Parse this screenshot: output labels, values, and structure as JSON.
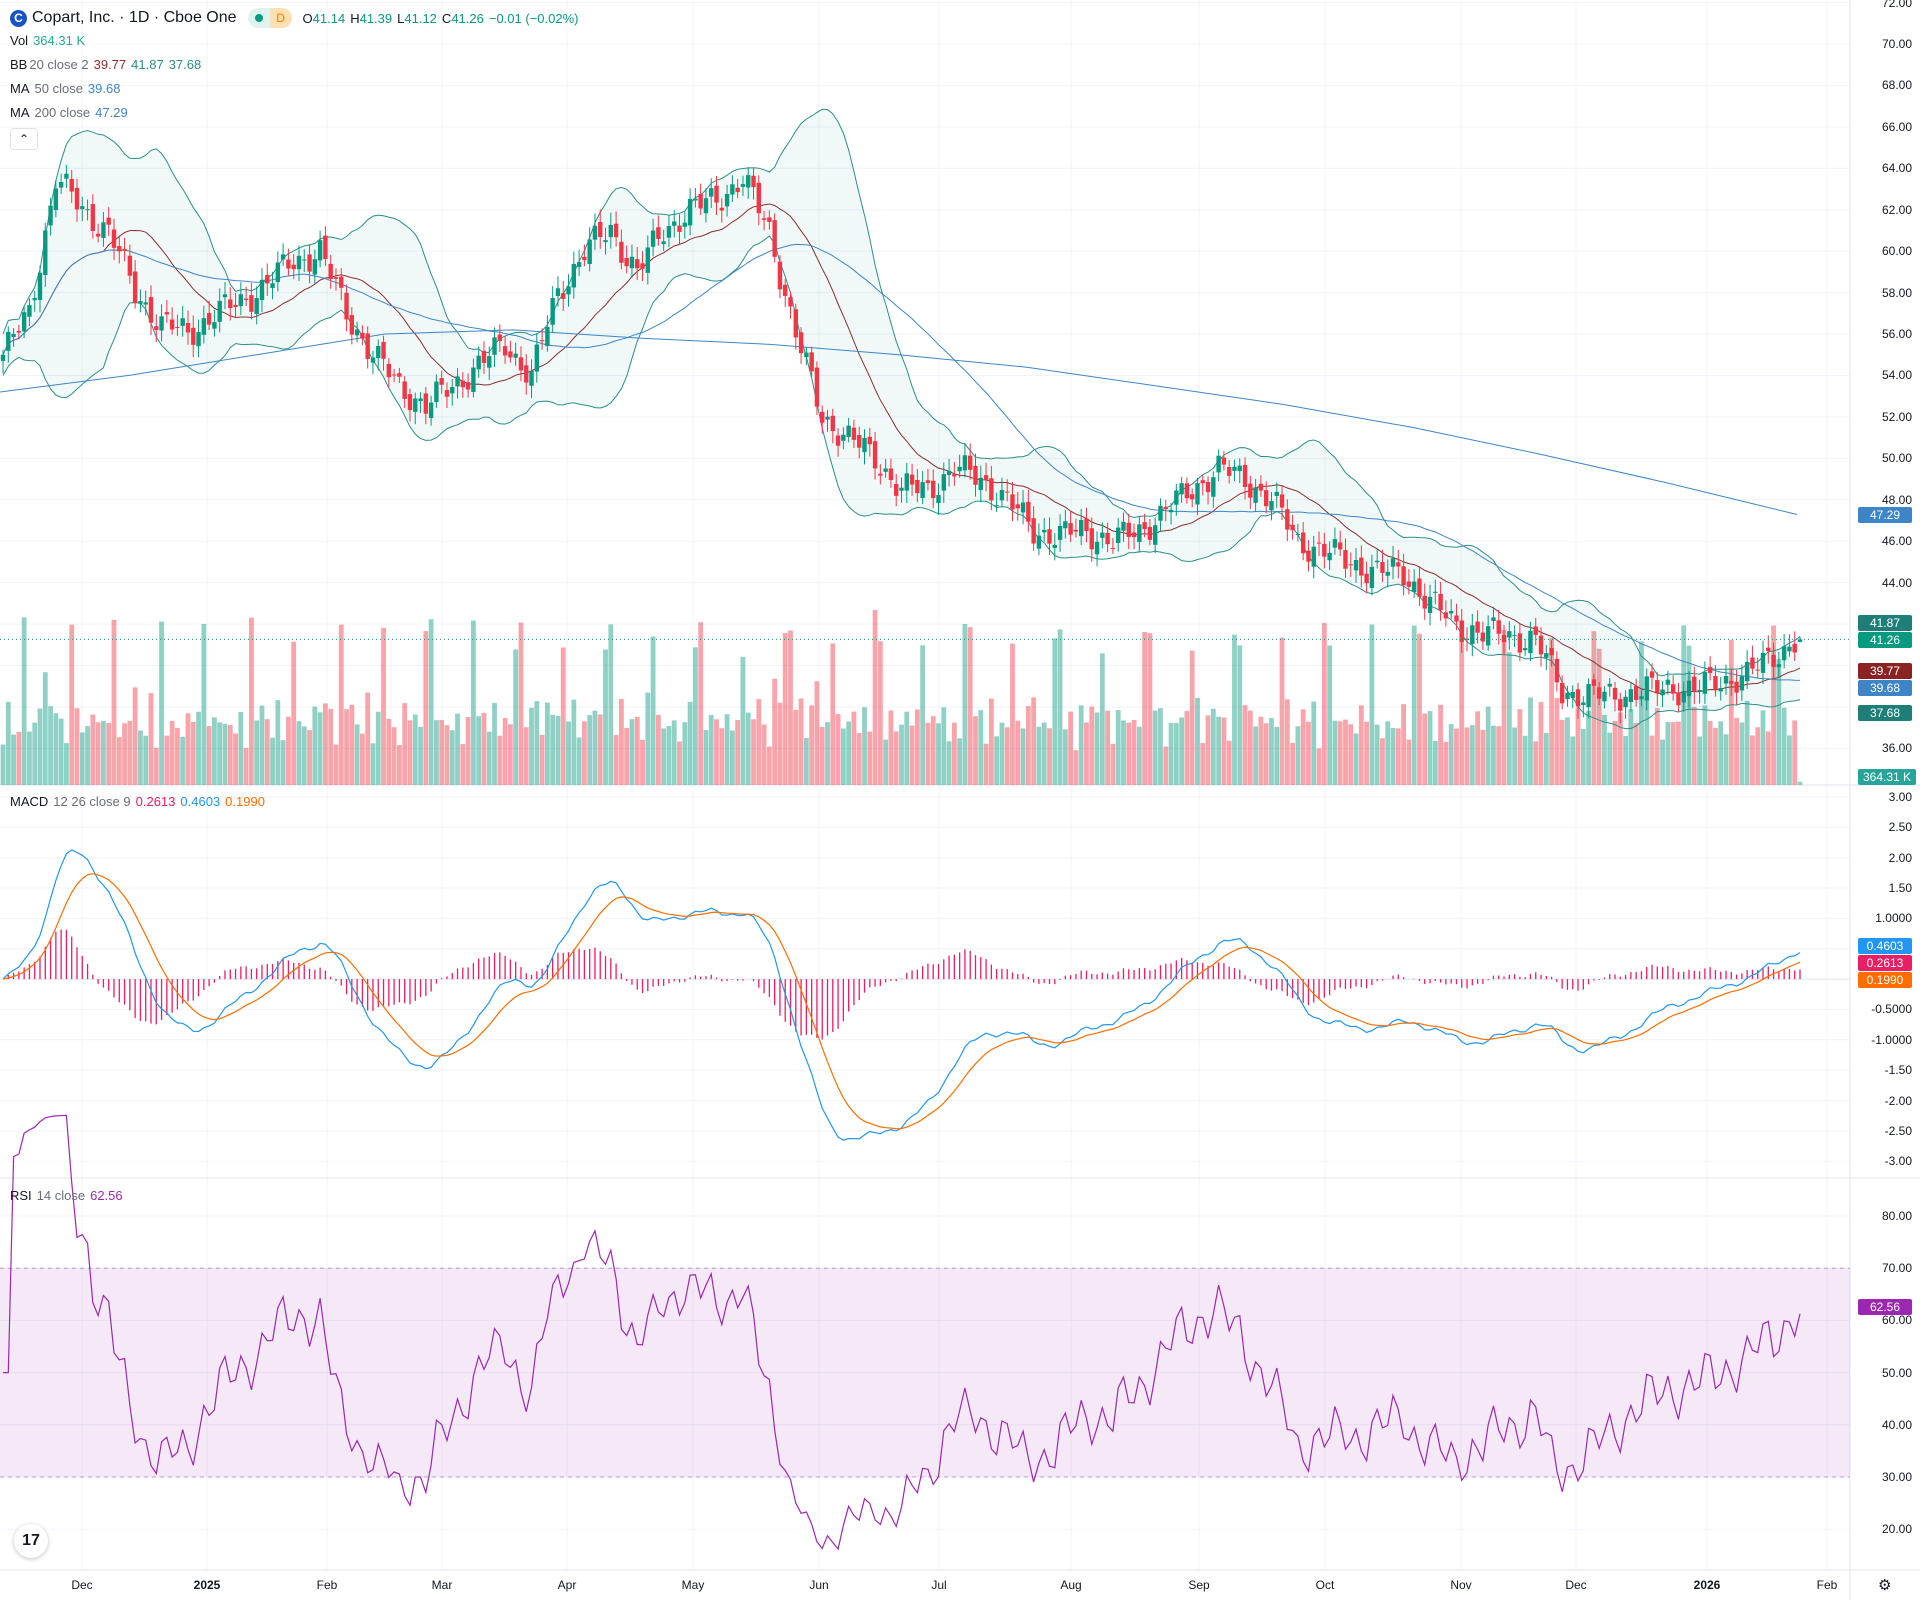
{
  "header": {
    "symbol": "Copart, Inc. · 1D · Cboe One",
    "open_label": "O",
    "open": "41.14",
    "high_label": "H",
    "high": "41.39",
    "low_label": "L",
    "low": "41.12",
    "close_label": "C",
    "close": "41.26",
    "change": "−0.01 (−0.02%)",
    "badge": "D",
    "logo_letter": "C"
  },
  "legend": {
    "vol": {
      "name": "Vol",
      "value": "364.31 K"
    },
    "bb": {
      "name": "BB",
      "params": "20 close 2",
      "basis": "39.77",
      "upper": "41.87",
      "lower": "37.68"
    },
    "ma50": {
      "name": "MA",
      "params": "50 close",
      "value": "39.68"
    },
    "ma200": {
      "name": "MA",
      "params": "200 close",
      "value": "47.29"
    },
    "macd": {
      "name": "MACD",
      "params": "12 26 close 9",
      "hist": "0.2613",
      "macd": "0.4603",
      "signal": "0.1990"
    },
    "rsi": {
      "name": "RSI",
      "params": "14 close",
      "value": "62.56"
    },
    "collapse": "⌃"
  },
  "price_axis": [
    "72.00",
    "70.00",
    "68.00",
    "66.00",
    "64.00",
    "62.00",
    "60.00",
    "58.00",
    "56.00",
    "54.00",
    "52.00",
    "50.00",
    "48.00",
    "46.00",
    "44.00",
    "36.00"
  ],
  "macd_axis": [
    "3.00",
    "2.50",
    "2.00",
    "1.50",
    "1.0000",
    "-0.5000",
    "-1.0000",
    "-1.50",
    "-2.00",
    "-2.50",
    "-3.00"
  ],
  "rsi_axis": [
    "80.00",
    "70.00",
    "60.00",
    "50.00",
    "40.00",
    "30.00",
    "20.00"
  ],
  "tags": {
    "bb_upper": "41.87",
    "close": "41.26",
    "bb_basis": "39.77",
    "ma50": "39.68",
    "bb_lower": "37.68",
    "volume": "364.31 K",
    "ma200": "47.29",
    "macd": "0.4603",
    "hist": "0.2613",
    "signal": "0.1990",
    "rsi": "62.56"
  },
  "time_axis": [
    {
      "label": "Dec",
      "bold": false
    },
    {
      "label": "2025",
      "bold": true
    },
    {
      "label": "Feb",
      "bold": false
    },
    {
      "label": "Mar",
      "bold": false
    },
    {
      "label": "Apr",
      "bold": false
    },
    {
      "label": "May",
      "bold": false
    },
    {
      "label": "Jun",
      "bold": false
    },
    {
      "label": "Jul",
      "bold": false
    },
    {
      "label": "Aug",
      "bold": false
    },
    {
      "label": "Sep",
      "bold": false
    },
    {
      "label": "Oct",
      "bold": false
    },
    {
      "label": "Nov",
      "bold": false
    },
    {
      "label": "Dec",
      "bold": false
    },
    {
      "label": "2026",
      "bold": true
    },
    {
      "label": "Feb",
      "bold": false
    }
  ],
  "colors": {
    "up": "#089981",
    "down": "#f23645",
    "bb": "#2b8f86",
    "bb_basis": "#8b2e2e",
    "ma50": "#3d85c6",
    "ma200": "#3d85c6",
    "macd": "#2196f3",
    "signal": "#ff6d00",
    "hist": "#e91e63",
    "rsi": "#9c27b0"
  },
  "chart_data": {
    "type": "candlestick",
    "symbol": "Copart, Inc.",
    "interval": "1D",
    "weekly_closes": [
      55,
      57,
      63.5,
      62,
      61,
      58,
      56.5,
      56,
      57,
      57.5,
      58.5,
      59.5,
      60,
      57,
      55,
      53.5,
      52.5,
      53.5,
      54.5,
      55.5,
      54,
      58,
      60,
      61,
      59,
      61,
      62,
      62.5,
      63.5,
      61,
      56,
      52,
      51,
      50,
      48.5,
      48.5,
      49.5,
      49,
      48,
      46.5,
      46.3,
      46.5,
      46,
      46.5,
      47.5,
      48.5,
      49.5,
      49,
      48,
      46,
      45.5,
      45,
      44.5,
      44.5,
      43,
      42,
      41.5,
      41.5,
      41.2,
      38.8,
      38.5,
      38.6,
      38.7,
      39,
      38.8,
      39.3,
      39.5,
      40.5,
      41.3
    ],
    "ma200": [
      53.2,
      54,
      55,
      56,
      56.2,
      55.8,
      55.5,
      55,
      54.4,
      53.5,
      52.6,
      51.5,
      50.2,
      48.8,
      47.29
    ],
    "ylim": [
      36,
      72
    ],
    "last": {
      "open": 41.14,
      "high": 41.39,
      "low": 41.12,
      "close": 41.26,
      "volume": "364.31 K"
    }
  }
}
